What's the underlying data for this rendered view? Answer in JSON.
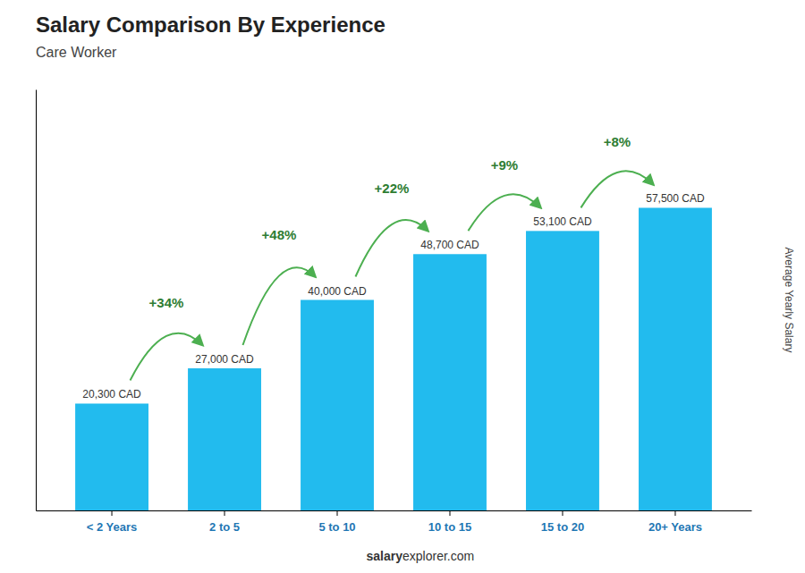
{
  "chart_data": {
    "type": "bar",
    "title": "Salary Comparison By Experience",
    "subtitle": "Care Worker",
    "y_label": "Average Yearly Salary",
    "categories": [
      "< 2 Years",
      "2 to 5",
      "5 to 10",
      "10 to 15",
      "15 to 20",
      "20+ Years"
    ],
    "values": [
      20300,
      27000,
      40000,
      48700,
      53100,
      57500
    ],
    "value_labels": [
      "20,300 CAD",
      "27,000 CAD",
      "40,000 CAD",
      "48,700 CAD",
      "53,100 CAD",
      "57,500 CAD"
    ],
    "data_labels": true,
    "color": "#22BBEE",
    "ylim": [
      0,
      80000
    ],
    "tick_labels": "x",
    "annotations": [
      "+34%",
      "+48%",
      "+22%",
      "+9%",
      "+8%"
    ],
    "footer": [
      "salary",
      "explorer.com"
    ]
  }
}
